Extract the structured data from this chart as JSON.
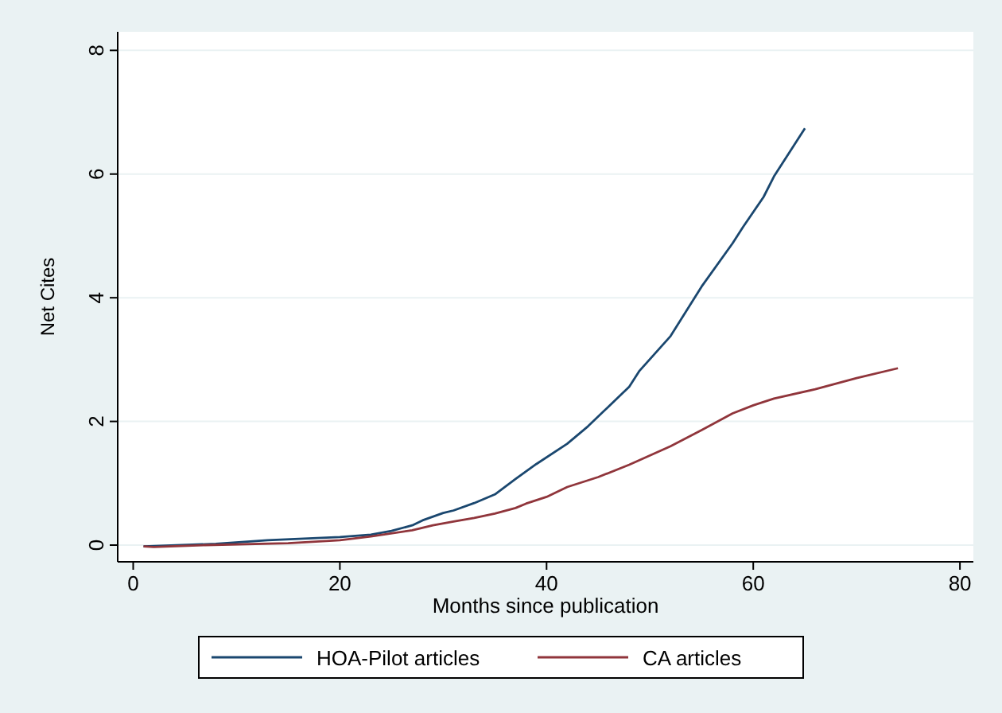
{
  "chart_data": {
    "type": "line",
    "xlabel": "Months since publication",
    "ylabel": "Net Cites",
    "xlim": [
      -1.5,
      81.3
    ],
    "ylim": [
      -0.27,
      8.3
    ],
    "xticks": [
      0,
      20,
      40,
      60,
      80
    ],
    "yticks": [
      0,
      2,
      4,
      6,
      8
    ],
    "grid": "y",
    "legend": "bottom",
    "line_style": "solid",
    "series": [
      {
        "name": "HOA-Pilot articles",
        "color": "#1a476f",
        "x": [
          1,
          8,
          13,
          20,
          23,
          25,
          27,
          28,
          30,
          31,
          33,
          35,
          37,
          39,
          42,
          44,
          48,
          49,
          52,
          55,
          58,
          59,
          61,
          62,
          65
        ],
        "values": [
          -0.02,
          0.02,
          0.08,
          0.13,
          0.17,
          0.23,
          0.32,
          0.4,
          0.52,
          0.56,
          0.68,
          0.82,
          1.07,
          1.31,
          1.64,
          1.92,
          2.56,
          2.82,
          3.38,
          4.18,
          4.88,
          5.14,
          5.63,
          5.96,
          6.74
        ]
      },
      {
        "name": "CA articles",
        "color": "#90353b",
        "x": [
          1,
          2,
          7,
          15,
          20,
          23,
          27,
          29,
          31,
          33,
          35,
          37,
          38,
          40,
          41,
          42,
          45,
          48,
          52,
          55,
          58,
          60,
          62,
          66,
          70,
          74
        ],
        "values": [
          -0.02,
          -0.03,
          0,
          0.03,
          0.08,
          0.14,
          0.24,
          0.32,
          0.38,
          0.44,
          0.51,
          0.6,
          0.67,
          0.78,
          0.86,
          0.94,
          1.1,
          1.3,
          1.6,
          1.86,
          2.13,
          2.26,
          2.37,
          2.52,
          2.7,
          2.86
        ]
      }
    ]
  }
}
